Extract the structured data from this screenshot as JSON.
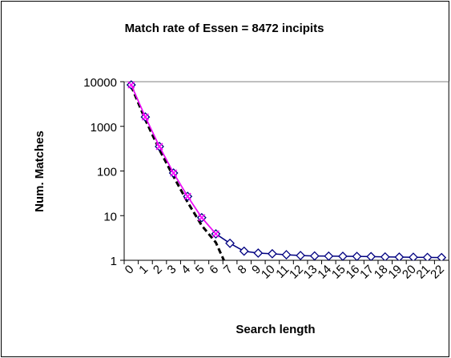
{
  "chart_data": {
    "type": "line",
    "title": "Match rate of Essen = 8472 incipits",
    "x_label": "Search length",
    "y_label": "Num. Matches",
    "categories": [
      "0",
      "1",
      "2",
      "3",
      "4",
      "5",
      "6",
      "7",
      "8",
      "9",
      "10",
      "11",
      "12",
      "13",
      "14",
      "15",
      "16",
      "17",
      "18",
      "19",
      "20",
      "21",
      "22"
    ],
    "log_y": true,
    "ylim": [
      1,
      10000
    ],
    "yticks": [
      1,
      10,
      100,
      1000,
      10000
    ],
    "series": [
      {
        "color": "#000000",
        "dash": true,
        "marker": "none",
        "values": [
          8000,
          1400,
          300,
          75,
          20,
          6,
          2.5,
          0.5,
          null,
          null,
          null,
          null,
          null,
          null,
          null,
          null,
          null,
          null,
          null,
          null,
          null,
          null,
          null
        ]
      },
      {
        "color": "#000080",
        "marker": "diamond",
        "values": [
          8472,
          1620,
          353,
          90,
          27,
          9,
          3.9,
          2.4,
          1.6,
          1.45,
          1.4,
          1.33,
          1.28,
          1.25,
          1.24,
          1.23,
          1.22,
          1.21,
          1.19,
          1.18,
          1.17,
          1.16,
          1.15
        ]
      },
      {
        "color": "#ff00ff",
        "marker": "x",
        "values": [
          8472,
          1620,
          353,
          90,
          27,
          9,
          3.9,
          null,
          null,
          null,
          null,
          null,
          null,
          null,
          null,
          null,
          null,
          null,
          null,
          null,
          null,
          null,
          null
        ]
      }
    ]
  }
}
